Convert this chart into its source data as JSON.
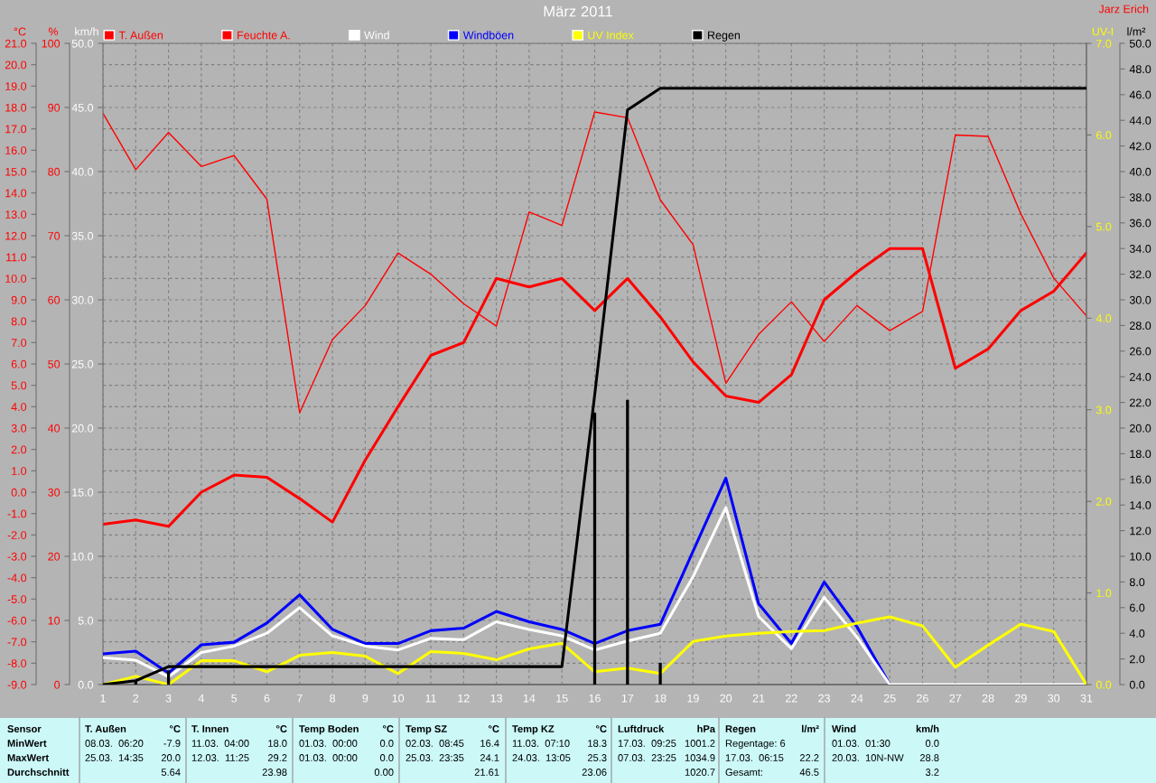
{
  "chart_data": [
    {
      "type": "line",
      "title": "März 2011",
      "x": [
        1,
        2,
        3,
        4,
        5,
        6,
        7,
        8,
        9,
        10,
        11,
        12,
        13,
        14,
        15,
        16,
        17,
        18,
        19,
        20,
        21,
        22,
        23,
        24,
        25,
        26,
        27,
        28,
        29,
        30,
        31
      ],
      "xlim": [
        1,
        31
      ],
      "xticks": [
        1,
        2,
        3,
        4,
        5,
        6,
        7,
        8,
        9,
        10,
        11,
        12,
        13,
        14,
        15,
        16,
        17,
        18,
        19,
        20,
        21,
        22,
        23,
        24,
        25,
        26,
        27,
        28,
        29,
        30,
        31
      ],
      "ylabel": "°C",
      "ylim": [
        -9,
        21
      ],
      "yticks": [
        {
          "value": -9,
          "label": "-9.0"
        },
        {
          "value": -8,
          "label": "-8.0"
        },
        {
          "value": -7,
          "label": "-7.0"
        },
        {
          "value": -6,
          "label": "-6.0"
        },
        {
          "value": -5,
          "label": "-5.0"
        },
        {
          "value": -4,
          "label": "-4.0"
        },
        {
          "value": -3,
          "label": "-3.0"
        },
        {
          "value": -2,
          "label": "-2.0"
        },
        {
          "value": -1,
          "label": "-1.0"
        },
        {
          "value": 0,
          "label": "0.0"
        },
        {
          "value": 1,
          "label": "1.0"
        },
        {
          "value": 2,
          "label": "2.0"
        },
        {
          "value": 3,
          "label": "3.0"
        },
        {
          "value": 4,
          "label": "4.0"
        },
        {
          "value": 5,
          "label": "5.0"
        },
        {
          "value": 6,
          "label": "6.0"
        },
        {
          "value": 7,
          "label": "7.0"
        },
        {
          "value": 8,
          "label": "8.0"
        },
        {
          "value": 9,
          "label": "9.0"
        },
        {
          "value": 10,
          "label": "10.0"
        },
        {
          "value": 11,
          "label": "11.0"
        },
        {
          "value": 12,
          "label": "12.0"
        },
        {
          "value": 13,
          "label": "13.0"
        },
        {
          "value": 14,
          "label": "14.0"
        },
        {
          "value": 15,
          "label": "15.0"
        },
        {
          "value": 16,
          "label": "16.0"
        },
        {
          "value": 17,
          "label": "17.0"
        },
        {
          "value": 18,
          "label": "18.0"
        },
        {
          "value": 19,
          "label": "19.0"
        },
        {
          "value": 20,
          "label": "20.0"
        },
        {
          "value": 21,
          "label": "21.0"
        }
      ],
      "y2label": "%",
      "y2lim": [
        0,
        100
      ],
      "y2ticks": [
        0,
        10,
        20,
        30,
        40,
        50,
        60,
        70,
        80,
        90,
        100
      ],
      "y3label": "km/h",
      "y3lim": [
        0,
        50
      ],
      "y3ticks": [
        {
          "value": 0,
          "label": "0.0"
        },
        {
          "value": 5,
          "label": "5.0"
        },
        {
          "value": 10,
          "label": "10.0"
        },
        {
          "value": 15,
          "label": "15.0"
        },
        {
          "value": 20,
          "label": "20.0"
        },
        {
          "value": 25,
          "label": "25.0"
        },
        {
          "value": 30,
          "label": "30.0"
        },
        {
          "value": 35,
          "label": "35.0"
        },
        {
          "value": 40,
          "label": "40.0"
        },
        {
          "value": 45,
          "label": "45.0"
        },
        {
          "value": 50,
          "label": "50.0"
        }
      ],
      "grid": true,
      "legend": "top",
      "series": [
        {
          "name": "T. Außen",
          "color": "#ff0000",
          "values": [
            -1.5,
            -1.3,
            -1.6,
            0.0,
            0.8,
            0.7,
            -0.3,
            -1.4,
            1.5,
            4.0,
            6.4,
            7.0,
            10.0,
            9.6,
            10.0,
            8.5,
            10.0,
            8.2,
            6.1,
            4.5,
            4.2,
            5.5,
            9.0,
            10.3,
            11.4,
            11.4,
            5.8,
            6.7,
            8.5,
            9.4,
            11.2
          ]
        },
        {
          "name": "Feuchte A.",
          "axis": "y2",
          "color": "#ff0000",
          "values": [
            89.1,
            80.3,
            86.1,
            80.8,
            82.5,
            75.7,
            42.4,
            53.8,
            59.1,
            67.3,
            64.0,
            59.4,
            55.9,
            73.7,
            71.6,
            89.3,
            88.4,
            75.6,
            68.6,
            47.0,
            54.6,
            59.7,
            53.5,
            59.1,
            55.2,
            58.2,
            85.7,
            85.5,
            73.4,
            63.4,
            57.5
          ]
        },
        {
          "name": "Wind",
          "axis": "y3",
          "color": "#ffffff",
          "values": [
            2.1,
            1.9,
            0.6,
            2.5,
            3.0,
            4.0,
            6.0,
            3.8,
            3.0,
            2.7,
            3.6,
            3.5,
            4.9,
            4.3,
            3.8,
            2.7,
            3.4,
            4.0,
            8.4,
            13.8,
            5.3,
            2.8,
            6.8,
            3.7,
            0.0,
            0.0,
            0.0,
            0.0,
            0.0,
            0.0,
            0.0
          ]
        },
        {
          "name": "Windböen",
          "axis": "y3",
          "color": "#0000ff",
          "values": [
            2.4,
            2.6,
            0.9,
            3.1,
            3.3,
            4.8,
            7.0,
            4.3,
            3.2,
            3.2,
            4.2,
            4.4,
            5.7,
            4.9,
            4.3,
            3.2,
            4.2,
            4.7,
            10.4,
            16.1,
            6.3,
            3.2,
            8.0,
            4.5,
            0.0,
            null,
            null,
            null,
            null,
            null,
            null
          ]
        }
      ],
      "annotations": [
        "Jarz Erich",
        "Sensor",
        "MinWert",
        "MaxWert",
        "Durchschnitt",
        "T. Außen",
        "°C",
        "08.03.  06:20",
        "-7.9",
        "25.03.  14:35",
        "20.0",
        "5.64",
        "T. Innen",
        "°C",
        "11.03.  04:00",
        "18.0",
        "12.03.  11:25",
        "29.2",
        "23.98",
        "Temp Boden",
        "°C",
        "01.03.  00:00",
        "0.0",
        "01.03.  00:00",
        "0.0",
        "0.00",
        "Temp SZ",
        "°C",
        "02.03.  08:45",
        "16.4",
        "25.03.  23:35",
        "24.1",
        "21.61",
        "Temp KZ",
        "°C",
        "11.03.  07:10",
        "18.3",
        "24.03.  13:05",
        "25.3",
        "23.06",
        "Luftdruck",
        "hPa",
        "17.03.  09:25",
        "1001.2",
        "07.03.  23:25",
        "1034.9",
        "1020.7",
        "Regen",
        "l/m²",
        "Regentage: 6",
        "17.03.  06:15",
        "22.2",
        "Gesamt:",
        "46.5",
        "Wind",
        "km/h",
        "01.03.  01:30",
        "0.0",
        "20.03.  10N-NW",
        "28.8",
        "3.2"
      ]
    },
    {
      "type": "line",
      "x": [
        1,
        2,
        3,
        4,
        5,
        6,
        7,
        8,
        9,
        10,
        11,
        12,
        13,
        14,
        15,
        16,
        17,
        18,
        19,
        20,
        21,
        22,
        23,
        24,
        25,
        26,
        27,
        28,
        29,
        30,
        31
      ],
      "xlim": [
        1,
        31
      ],
      "tick_labels": "y",
      "legend": "top",
      "ylabel": "UV-I",
      "ylim": [
        0,
        7
      ],
      "yticks": [
        {
          "value": 0,
          "label": "0.0"
        },
        {
          "value": 1,
          "label": "1.0"
        },
        {
          "value": 2,
          "label": "2.0"
        },
        {
          "value": 3,
          "label": "3.0"
        },
        {
          "value": 4,
          "label": "4.0"
        },
        {
          "value": 5,
          "label": "5.0"
        },
        {
          "value": 6,
          "label": "6.0"
        },
        {
          "value": 7,
          "label": "7.0"
        }
      ],
      "y2label": "l/m²",
      "y2lim": [
        0,
        50
      ],
      "y2ticks": [
        {
          "value": 0,
          "label": "0.0"
        },
        {
          "value": 2,
          "label": "2.0"
        },
        {
          "value": 4,
          "label": "4.0"
        },
        {
          "value": 6,
          "label": "6.0"
        },
        {
          "value": 8,
          "label": "8.0"
        },
        {
          "value": 10,
          "label": "10.0"
        },
        {
          "value": 12,
          "label": "12.0"
        },
        {
          "value": 14,
          "label": "14.0"
        },
        {
          "value": 16,
          "label": "16.0"
        },
        {
          "value": 18,
          "label": "18.0"
        },
        {
          "value": 20,
          "label": "20.0"
        },
        {
          "value": 22,
          "label": "22.0"
        },
        {
          "value": 24,
          "label": "24.0"
        },
        {
          "value": 26,
          "label": "26.0"
        },
        {
          "value": 28,
          "label": "28.0"
        },
        {
          "value": 30,
          "label": "30.0"
        },
        {
          "value": 32,
          "label": "32.0"
        },
        {
          "value": 34,
          "label": "34.0"
        },
        {
          "value": 36,
          "label": "36.0"
        },
        {
          "value": 38,
          "label": "38.0"
        },
        {
          "value": 40,
          "label": "40.0"
        },
        {
          "value": 42,
          "label": "42.0"
        },
        {
          "value": 44,
          "label": "44.0"
        },
        {
          "value": 46,
          "label": "46.0"
        },
        {
          "value": 48,
          "label": "48.0"
        },
        {
          "value": 50,
          "label": "50.0"
        }
      ],
      "series": [
        {
          "name": "UV Index",
          "color": "#ffff00",
          "values": [
            0.0,
            0.09,
            0.0,
            0.26,
            0.26,
            0.14,
            0.32,
            0.35,
            0.31,
            0.12,
            0.36,
            0.34,
            0.27,
            0.39,
            0.45,
            0.14,
            0.18,
            0.12,
            0.47,
            0.53,
            0.56,
            0.58,
            0.59,
            0.67,
            0.74,
            0.64,
            0.19,
            0.43,
            0.66,
            0.58,
            0.0
          ]
        },
        {
          "name": "Regen",
          "axis": "y2",
          "color": "#000000",
          "values": [
            0.0,
            0.3,
            1.4,
            1.4,
            1.4,
            1.4,
            1.4,
            1.4,
            1.4,
            1.4,
            1.4,
            1.4,
            1.4,
            1.4,
            1.4,
            22.6,
            44.8,
            46.5,
            46.5,
            46.5,
            46.5,
            46.5,
            46.5,
            46.5,
            46.5,
            46.5,
            46.5,
            46.5,
            46.5,
            46.5,
            46.5
          ]
        },
        {
          "type": "bar",
          "axis": "y2",
          "color": "#000000",
          "values": [
            null,
            0.3,
            1.1,
            null,
            null,
            null,
            null,
            null,
            null,
            null,
            null,
            null,
            null,
            null,
            null,
            21.2,
            22.2,
            1.7,
            null,
            null,
            null,
            null,
            null,
            null,
            null,
            null,
            null,
            null,
            null,
            null,
            null
          ]
        }
      ]
    }
  ]
}
